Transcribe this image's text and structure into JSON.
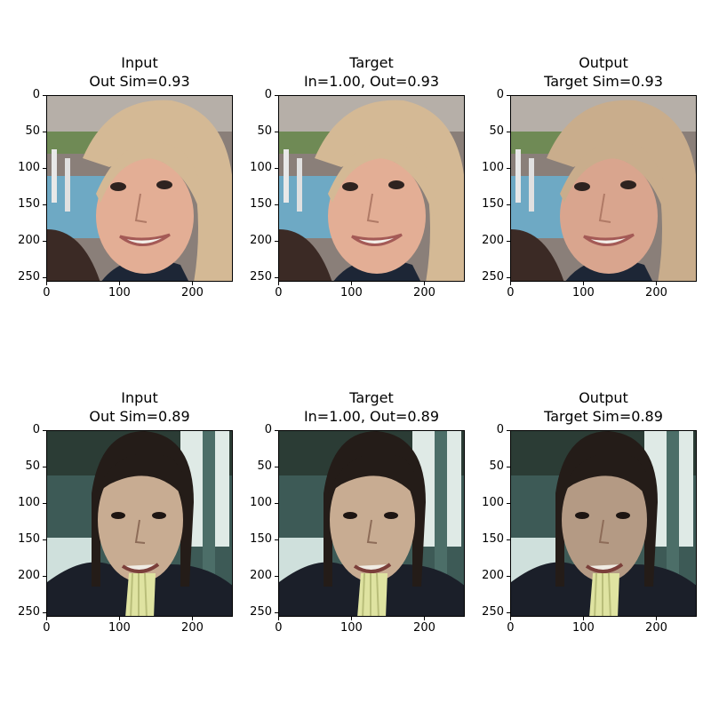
{
  "panels": [
    {
      "row": 0,
      "col": 0,
      "title_lines": [
        "Input",
        "Out Sim=0.93"
      ],
      "image": "blonde-woman-face-photo"
    },
    {
      "row": 0,
      "col": 1,
      "title_lines": [
        "Target",
        "In=1.00, Out=0.93"
      ],
      "image": "blonde-woman-face-photo"
    },
    {
      "row": 0,
      "col": 2,
      "title_lines": [
        "Output",
        "Target Sim=0.93"
      ],
      "image": "blonde-woman-face-photo-reconstructed"
    },
    {
      "row": 1,
      "col": 0,
      "title_lines": [
        "Input",
        "Out Sim=0.89"
      ],
      "image": "woman-eating-noodles-photo"
    },
    {
      "row": 1,
      "col": 1,
      "title_lines": [
        "Target",
        "In=1.00, Out=0.89"
      ],
      "image": "woman-eating-noodles-photo"
    },
    {
      "row": 1,
      "col": 2,
      "title_lines": [
        "Output",
        "Target Sim=0.89"
      ],
      "image": "woman-eating-noodles-photo-reconstructed"
    }
  ],
  "axes": {
    "y_ticks": [
      "0",
      "50",
      "100",
      "150",
      "200",
      "250"
    ],
    "y_values": [
      0,
      50,
      100,
      150,
      200,
      250
    ],
    "x_ticks": [
      "0",
      "100",
      "200"
    ],
    "x_values": [
      0,
      100,
      200
    ],
    "image_size": 256
  }
}
